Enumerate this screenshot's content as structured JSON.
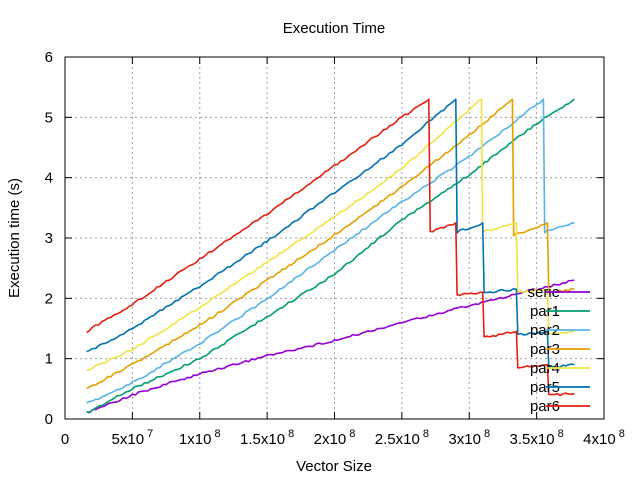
{
  "chart_data": {
    "type": "line",
    "title": "Execution Time",
    "xlabel": "Vector Size",
    "ylabel": "Execution time (s)",
    "xlim": [
      0,
      400000000
    ],
    "ylim": [
      0,
      6
    ],
    "grid": true,
    "legend_position": "bottom-right",
    "x_ticks": [
      {
        "value": 0,
        "base": "0",
        "exp": ""
      },
      {
        "value": 50000000,
        "base": "5x10",
        "exp": "7"
      },
      {
        "value": 100000000,
        "base": "1x10",
        "exp": "8"
      },
      {
        "value": 150000000,
        "base": "1.5x10",
        "exp": "8"
      },
      {
        "value": 200000000,
        "base": "2x10",
        "exp": "8"
      },
      {
        "value": 250000000,
        "base": "2.5x10",
        "exp": "8"
      },
      {
        "value": 300000000,
        "base": "3x10",
        "exp": "8"
      },
      {
        "value": 350000000,
        "base": "3.5x10",
        "exp": "8"
      },
      {
        "value": 400000000,
        "base": "4x10",
        "exp": "8"
      }
    ],
    "y_ticks": [
      "0",
      "1",
      "2",
      "3",
      "4",
      "5",
      "6"
    ],
    "series": [
      {
        "name": "serie",
        "color": "#9400d3",
        "x": [
          16000000,
          50000000,
          100000000,
          150000000,
          200000000,
          250000000,
          300000000,
          350000000,
          378000000
        ],
        "y": [
          0.1,
          0.4,
          0.75,
          1.05,
          1.3,
          1.6,
          1.88,
          2.15,
          2.3
        ]
      },
      {
        "name": "par1",
        "color": "#009e73",
        "x": [
          16000000,
          50000000,
          100000000,
          150000000,
          200000000,
          250000000,
          300000000,
          350000000,
          378000000
        ],
        "y": [
          0.1,
          0.5,
          1.0,
          1.7,
          2.4,
          3.3,
          4.05,
          4.9,
          5.3
        ]
      },
      {
        "name": "par2",
        "color": "#56b4e9",
        "x": [
          16000000,
          50000000,
          100000000,
          150000000,
          200000000,
          250000000,
          300000000,
          355000000,
          356000000,
          378000000
        ],
        "y": [
          0.25,
          0.6,
          1.25,
          2.0,
          2.8,
          3.6,
          4.35,
          5.3,
          3.1,
          3.25
        ]
      },
      {
        "name": "par3",
        "color": "#e69f00",
        "x": [
          16000000,
          50000000,
          100000000,
          150000000,
          200000000,
          250000000,
          300000000,
          332000000,
          333000000,
          358000000,
          359000000,
          378000000
        ],
        "y": [
          0.5,
          0.9,
          1.55,
          2.3,
          3.05,
          3.85,
          4.7,
          5.3,
          3.05,
          3.25,
          2.1,
          2.15
        ]
      },
      {
        "name": "par4",
        "color": "#f0e442",
        "x": [
          16000000,
          50000000,
          100000000,
          150000000,
          200000000,
          250000000,
          309000000,
          310000000,
          335000000,
          336000000,
          358000000,
          359000000,
          378000000
        ],
        "y": [
          0.8,
          1.15,
          1.85,
          2.6,
          3.35,
          4.15,
          5.3,
          3.1,
          3.25,
          2.1,
          2.15,
          1.4,
          1.45
        ]
      },
      {
        "name": "par5",
        "color": "#0072b2",
        "x": [
          16000000,
          50000000,
          100000000,
          150000000,
          200000000,
          250000000,
          290000000,
          291000000,
          310000000,
          311000000,
          335000000,
          336000000,
          358000000,
          359000000,
          378000000
        ],
        "y": [
          1.1,
          1.5,
          2.2,
          2.95,
          3.75,
          4.55,
          5.3,
          3.1,
          3.25,
          2.1,
          2.15,
          1.4,
          1.45,
          0.85,
          0.9
        ]
      },
      {
        "name": "par6",
        "color": "#e51e10",
        "x": [
          16000000,
          50000000,
          100000000,
          150000000,
          200000000,
          250000000,
          270000000,
          271000000,
          290000000,
          291000000,
          310000000,
          311000000,
          335000000,
          336000000,
          358000000,
          359000000,
          378000000
        ],
        "y": [
          1.45,
          1.9,
          2.65,
          3.4,
          4.2,
          5.0,
          5.3,
          3.1,
          3.25,
          2.05,
          2.1,
          1.35,
          1.45,
          0.85,
          0.9,
          0.4,
          0.42
        ]
      }
    ]
  }
}
